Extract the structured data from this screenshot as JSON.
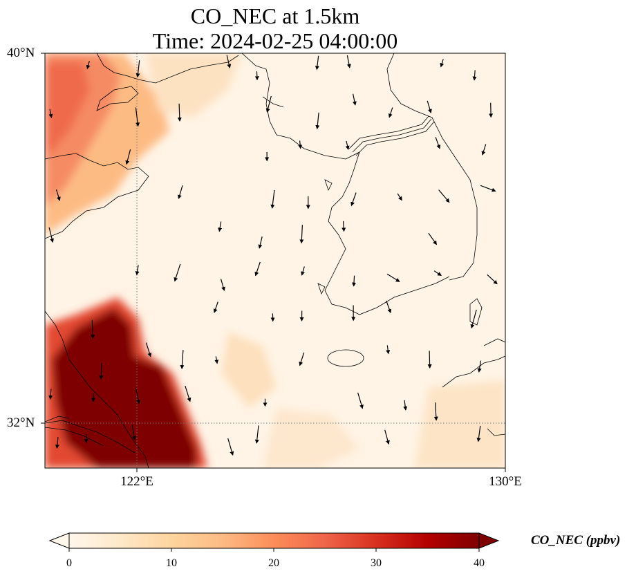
{
  "title": {
    "line1": "CO_NEC at 1.5km",
    "line2": "Time: 2024-02-25 04:00:00"
  },
  "map": {
    "variable": "CO_NEC",
    "height": "1.5km",
    "extent": {
      "lon_min": 120,
      "lon_max": 130,
      "lat_min": 31,
      "lat_max": 40
    },
    "gridlines": {
      "lons": [
        122
      ],
      "lats": [
        32
      ],
      "style": "dotted"
    },
    "lat_ticks": [
      {
        "value": 40,
        "label": "40°N"
      },
      {
        "value": 32,
        "label": "32°N"
      }
    ],
    "lon_ticks": [
      {
        "value": 122,
        "label": "122°E"
      },
      {
        "value": 130,
        "label": "130°E"
      }
    ],
    "wind_vectors": "mostly southward, light",
    "concentration_regions": [
      {
        "area": "Yangtze delta / Shanghai (SW corner)",
        "value_ppbv": 40
      },
      {
        "area": "Shandong coast (NW corner)",
        "value_ppbv": 22
      },
      {
        "area": "Yellow Sea / Korea",
        "value_ppbv": 4
      }
    ]
  },
  "colorbar": {
    "label": "CO_NEC (ppbv)",
    "min": 0,
    "max": 40,
    "ticks": [
      "0",
      "10",
      "20",
      "30",
      "40"
    ],
    "extend": "both",
    "colormap": "OrRd",
    "colors": [
      "#fff7ec",
      "#fee8c8",
      "#fdd49e",
      "#fdbb84",
      "#fc8d59",
      "#ef6548",
      "#d7301f",
      "#b30000",
      "#7f0000"
    ]
  }
}
